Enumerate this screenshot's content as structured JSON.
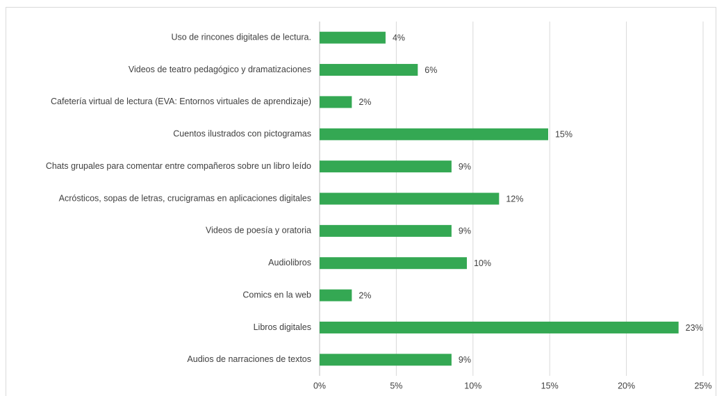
{
  "chart_data": {
    "type": "hbar",
    "categories": [
      "Uso de rincones digitales de lectura.",
      "Videos de teatro pedagógico y dramatizaciones",
      "Cafetería virtual de lectura (EVA: Entornos virtuales de aprendizaje)",
      "Cuentos ilustrados con pictogramas",
      "Chats grupales para comentar entre compañeros sobre un libro leído",
      "Acrósticos, sopas de letras, crucigramas en aplicaciones digitales",
      "Videos de poesía y oratoria",
      "Audiolibros",
      "Comics en la web",
      "Libros digitales",
      "Audios de narraciones de textos"
    ],
    "values": [
      4.3,
      6.4,
      2.1,
      14.9,
      8.6,
      11.7,
      8.6,
      9.6,
      2.1,
      23.4,
      8.6
    ],
    "value_labels": [
      "4%",
      "6%",
      "2%",
      "15%",
      "9%",
      "12%",
      "9%",
      "10%",
      "2%",
      "23%",
      "9%"
    ],
    "color": "#34a853",
    "xlim": [
      0,
      25
    ],
    "xticks": [
      {
        "value": 0,
        "label": "0%"
      },
      {
        "value": 5,
        "label": "5%"
      },
      {
        "value": 10,
        "label": "10%"
      },
      {
        "value": 15,
        "label": "15%"
      },
      {
        "value": 20,
        "label": "20%"
      },
      {
        "value": 25,
        "label": "25%"
      }
    ],
    "grid": true
  }
}
